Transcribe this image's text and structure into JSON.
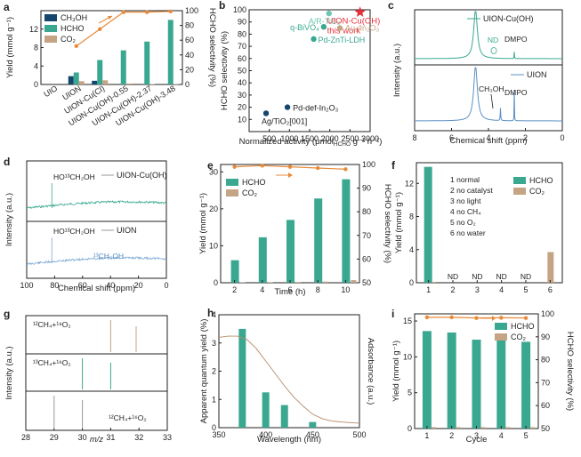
{
  "colors": {
    "teal": "#3aa890",
    "tan": "#c4a484",
    "navy": "#15466b",
    "orange": "#e88a3a",
    "red": "#e8303a",
    "light_teal": "#6fc6b2",
    "gray": "#9a9a9a"
  },
  "chart_data": [
    {
      "panel": "a",
      "type": "bar",
      "categories": [
        "UIO",
        "UION",
        "UION-Cu(Cl)",
        "UION-Cu(OH)-0.55",
        "UION-Cu(OH)-2.37",
        "UION-Cu(OH)-3.48"
      ],
      "series": [
        {
          "name": "CH3OH",
          "values": [
            0,
            1.8,
            0.8,
            0,
            0,
            0
          ],
          "color": "navy"
        },
        {
          "name": "HCHO",
          "values": [
            0,
            2.6,
            5.3,
            7.4,
            9.3,
            14.0
          ],
          "color": "teal"
        },
        {
          "name": "CO2",
          "values": [
            0,
            0.7,
            0.9,
            0.2,
            0.1,
            0.1
          ],
          "color": "tan"
        }
      ],
      "selectivity": {
        "name": "HCHO selectivity",
        "values": [
          null,
          52,
          75,
          98,
          98,
          99
        ]
      },
      "ylabel": "Yield (mmol g⁻¹)",
      "y2label": "HCHO selectivity (%)",
      "ylim": [
        0,
        16
      ],
      "yticks": [
        0,
        4,
        8,
        12
      ],
      "y2lim": [
        0,
        100
      ],
      "y2ticks": [
        0,
        20,
        40,
        60,
        80,
        100
      ]
    },
    {
      "panel": "b",
      "type": "scatter",
      "xlabel": "Normalized activity (μmol",
      "xlabel_sub": "HCHO",
      "xlabel_tail": " g⁻¹ h⁻¹)",
      "ylabel": "HCHO selectivity (%)",
      "xlim": [
        0,
        3000
      ],
      "xticks": [
        500,
        1000,
        1500,
        2000,
        2500,
        3000
      ],
      "ylim": [
        0,
        100
      ],
      "yticks": [
        10,
        20,
        30,
        40,
        50,
        60,
        70,
        80,
        90,
        100
      ],
      "points": [
        {
          "label": "A/R-TiO₂",
          "x": 1980,
          "y": 97,
          "color": "light_teal",
          "marker": "circle"
        },
        {
          "label": "UION-Cu(OH)",
          "note": "this work",
          "x": 2750,
          "y": 98,
          "color": "red",
          "marker": "star"
        },
        {
          "label": "Au₁/In₂O₃",
          "x": 2250,
          "y": 85,
          "color": "tan",
          "marker": "circle"
        },
        {
          "label": "q-BiVO₄",
          "x": 1850,
          "y": 86,
          "color": "teal",
          "marker": "circle"
        },
        {
          "label": "Pd-ZnTi-LDH",
          "x": 1600,
          "y": 76,
          "color": "teal",
          "marker": "circle"
        },
        {
          "label": "Pd-def-In₂O₃",
          "x": 950,
          "y": 20,
          "color": "navy",
          "marker": "circle"
        },
        {
          "label": "Ag/TiO₂[001]",
          "x": 420,
          "y": 15,
          "color": "navy",
          "marker": "circle"
        }
      ]
    },
    {
      "panel": "c",
      "type": "line",
      "xlabel": "Chemical shift (ppm)",
      "ylabel": "Intensity (a.u.)",
      "xlim": [
        8,
        0
      ],
      "xticks": [
        8,
        6,
        4,
        2,
        0
      ],
      "traces": [
        {
          "name": "UION-Cu(OH)",
          "peaks": [
            4.7,
            2.6
          ],
          "annotations": [
            "ND",
            "DMPO"
          ]
        },
        {
          "name": "UION",
          "peaks": [
            4.7,
            3.35,
            2.6
          ],
          "annotations": [
            "CH₃OH",
            "DMPO"
          ]
        }
      ]
    },
    {
      "panel": "d",
      "type": "line",
      "xlabel": "Chemical shift (ppm)",
      "ylabel": "Intensity (a.u.)",
      "xlim": [
        100,
        0
      ],
      "xticks": [
        100,
        80,
        60,
        40,
        20,
        0
      ],
      "traces": [
        {
          "name": "UION-Cu(OH)",
          "peaks": [
            82
          ],
          "annotations": [
            "HO¹³CH₂OH"
          ]
        },
        {
          "name": "UION",
          "peaks": [
            82,
            50
          ],
          "annotations": [
            "HO¹³CH₂OH",
            "¹³CH₃OH"
          ]
        }
      ]
    },
    {
      "panel": "e",
      "type": "bar",
      "xlabel": "Time (h)",
      "ylabel": "Yield (mmol g⁻¹)",
      "y2label": "HCHO selectivity (%)",
      "categories": [
        "2",
        "4",
        "6",
        "8",
        "10"
      ],
      "series": [
        {
          "name": "HCHO",
          "values": [
            6.1,
            12.3,
            17.0,
            22.8,
            28.0
          ],
          "color": "teal"
        },
        {
          "name": "CO2",
          "values": [
            0.1,
            0.1,
            0.2,
            0.3,
            0.7
          ],
          "color": "tan"
        }
      ],
      "selectivity": {
        "name": "HCHO selectivity",
        "values": [
          99,
          99.5,
          99,
          98.5,
          98
        ]
      },
      "ylim": [
        0,
        32
      ],
      "yticks": [
        0,
        10,
        20,
        30
      ],
      "y2lim": [
        50,
        100
      ],
      "y2ticks": [
        50,
        60,
        70,
        80,
        90,
        100
      ]
    },
    {
      "panel": "f",
      "type": "bar",
      "ylabel": "Yield (mmol g⁻¹)",
      "categories": [
        "1",
        "2",
        "3",
        "4",
        "5",
        "6"
      ],
      "conditions": [
        "1  normal",
        "2  no catalyst",
        "3  no light",
        "4  no CH₄",
        "5  no O₂",
        "6  no water"
      ],
      "series": [
        {
          "name": "HCHO",
          "values": [
            14.0,
            0,
            0,
            0,
            0,
            0
          ],
          "color": "teal"
        },
        {
          "name": "CO2",
          "values": [
            0.1,
            0,
            0,
            0,
            0,
            3.7
          ],
          "color": "tan"
        }
      ],
      "nd_labels": [
        "ND",
        "ND",
        "ND",
        "ND"
      ],
      "ylim": [
        0,
        14.5
      ],
      "yticks": [
        0,
        4,
        8,
        12
      ]
    },
    {
      "panel": "g",
      "type": "bar",
      "xlabel": "m/z",
      "ylabel": "Intensity (a.u.)",
      "xlim": [
        28,
        33
      ],
      "xticks": [
        28,
        29,
        30,
        31,
        32,
        33
      ],
      "traces": [
        {
          "name": "¹²CH₄+¹⁸O₂",
          "lines": [
            31,
            31.9
          ],
          "colors": [
            "tan",
            "tan"
          ]
        },
        {
          "name": "¹³CH₄+¹⁶O₂",
          "lines": [
            30,
            31
          ],
          "colors": [
            "teal",
            "teal"
          ]
        },
        {
          "name": "¹²CH₄+¹⁶O₂",
          "lines": [
            29,
            30
          ],
          "colors": [
            "gray",
            "gray"
          ]
        }
      ]
    },
    {
      "panel": "h",
      "type": "bar",
      "xlabel": "Wavelength (nm)",
      "ylabel": "Apparent quantum yield (%)",
      "y2label": "Adsorbance (a.u.)",
      "x": [
        375,
        400,
        420,
        450
      ],
      "values": [
        3.5,
        1.25,
        0.8,
        0.2
      ],
      "xlim": [
        350,
        500
      ],
      "xticks": [
        350,
        400,
        450,
        500
      ],
      "ylim": [
        0,
        4
      ],
      "yticks": [
        0,
        1,
        2,
        3,
        4
      ],
      "absorbance": {
        "x": [
          350,
          360,
          370,
          380,
          390,
          400,
          410,
          420,
          430,
          440,
          450,
          460,
          470,
          480,
          490,
          500
        ],
        "y": [
          0.8,
          0.81,
          0.81,
          0.78,
          0.7,
          0.59,
          0.48,
          0.37,
          0.27,
          0.19,
          0.12,
          0.08,
          0.06,
          0.05,
          0.045,
          0.04
        ]
      }
    },
    {
      "panel": "i",
      "type": "bar",
      "xlabel": "Cycle",
      "ylabel": "Yield (mmol g⁻¹)",
      "y2label": "HCHO selectivity (%)",
      "categories": [
        "1",
        "2",
        "3",
        "4",
        "5"
      ],
      "series": [
        {
          "name": "HCHO",
          "values": [
            13.6,
            13.4,
            12.4,
            12.6,
            12.1
          ],
          "color": "teal"
        },
        {
          "name": "CO2",
          "values": [
            0.2,
            0.2,
            0.2,
            0.2,
            0.2
          ],
          "color": "tan"
        }
      ],
      "selectivity": {
        "name": "HCHO selectivity",
        "values": [
          98.5,
          98.5,
          98.2,
          98.3,
          98.2
        ]
      },
      "ylim": [
        0,
        16
      ],
      "yticks": [
        0,
        5,
        10,
        15
      ],
      "y2lim": [
        50,
        100
      ],
      "y2ticks": [
        50,
        60,
        70,
        80,
        90,
        100
      ]
    }
  ]
}
